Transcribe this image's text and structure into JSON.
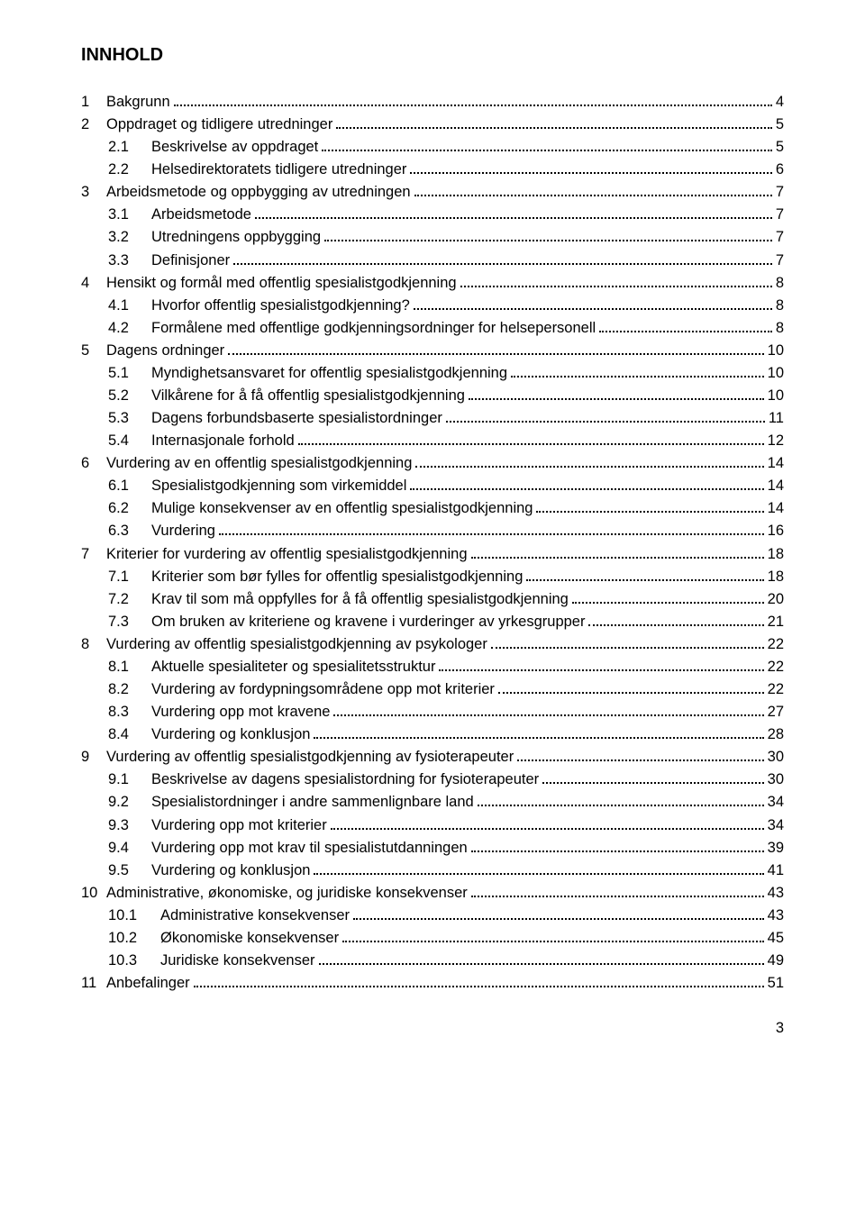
{
  "title": "INNHOLD",
  "footer_page": "3",
  "entries": [
    {
      "indent": 0,
      "num": "1",
      "text": "Bakgrunn",
      "page": "4"
    },
    {
      "indent": 0,
      "num": "2",
      "text": "Oppdraget og tidligere utredninger",
      "page": "5"
    },
    {
      "indent": 1,
      "num": "2.1",
      "text": "Beskrivelse av oppdraget",
      "page": "5"
    },
    {
      "indent": 1,
      "num": "2.2",
      "text": "Helsedirektoratets tidligere utredninger",
      "page": "6"
    },
    {
      "indent": 0,
      "num": "3",
      "text": "Arbeidsmetode og oppbygging av utredningen",
      "page": "7"
    },
    {
      "indent": 1,
      "num": "3.1",
      "text": "Arbeidsmetode",
      "page": "7"
    },
    {
      "indent": 1,
      "num": "3.2",
      "text": "Utredningens oppbygging",
      "page": "7"
    },
    {
      "indent": 1,
      "num": "3.3",
      "text": "Definisjoner",
      "page": "7"
    },
    {
      "indent": 0,
      "num": "4",
      "text": "Hensikt og formål med offentlig spesialistgodkjenning",
      "page": "8"
    },
    {
      "indent": 1,
      "num": "4.1",
      "text": "Hvorfor offentlig spesialistgodkjenning?",
      "page": "8"
    },
    {
      "indent": 1,
      "num": "4.2",
      "text": "Formålene med offentlige godkjenningsordninger for helsepersonell",
      "page": "8"
    },
    {
      "indent": 0,
      "num": "5",
      "text": "Dagens ordninger",
      "page": "10"
    },
    {
      "indent": 1,
      "num": "5.1",
      "text": "Myndighetsansvaret for offentlig spesialistgodkjenning",
      "page": "10"
    },
    {
      "indent": 1,
      "num": "5.2",
      "text": "Vilkårene for å få offentlig spesialistgodkjenning",
      "page": "10"
    },
    {
      "indent": 1,
      "num": "5.3",
      "text": "Dagens forbundsbaserte spesialistordninger",
      "page": "11"
    },
    {
      "indent": 1,
      "num": "5.4",
      "text": "Internasjonale forhold",
      "page": "12"
    },
    {
      "indent": 0,
      "num": "6",
      "text": "Vurdering av en offentlig spesialistgodkjenning",
      "page": "14"
    },
    {
      "indent": 1,
      "num": "6.1",
      "text": "Spesialistgodkjenning som virkemiddel",
      "page": "14"
    },
    {
      "indent": 1,
      "num": "6.2",
      "text": "Mulige konsekvenser av en offentlig spesialistgodkjenning",
      "page": "14"
    },
    {
      "indent": 1,
      "num": "6.3",
      "text": "Vurdering",
      "page": "16"
    },
    {
      "indent": 0,
      "num": "7",
      "text": "Kriterier for vurdering av offentlig spesialistgodkjenning",
      "page": "18"
    },
    {
      "indent": 1,
      "num": "7.1",
      "text": "Kriterier som bør fylles for offentlig spesialistgodkjenning",
      "page": "18"
    },
    {
      "indent": 1,
      "num": "7.2",
      "text": "Krav til som må oppfylles for å få offentlig spesialistgodkjenning",
      "page": "20"
    },
    {
      "indent": 1,
      "num": "7.3",
      "text": "Om bruken av kriteriene og kravene i vurderinger av yrkesgrupper",
      "page": "21"
    },
    {
      "indent": 0,
      "num": "8",
      "text": "Vurdering av offentlig spesialistgodkjenning av psykologer",
      "page": "22"
    },
    {
      "indent": 1,
      "num": "8.1",
      "text": "Aktuelle spesialiteter og spesialitetsstruktur",
      "page": "22"
    },
    {
      "indent": 1,
      "num": "8.2",
      "text": "Vurdering av fordypningsområdene opp mot kriterier",
      "page": "22"
    },
    {
      "indent": 1,
      "num": "8.3",
      "text": "Vurdering opp mot kravene",
      "page": "27"
    },
    {
      "indent": 1,
      "num": "8.4",
      "text": "Vurdering og konklusjon",
      "page": "28"
    },
    {
      "indent": 0,
      "num": "9",
      "text": "Vurdering av offentlig spesialistgodkjenning av fysioterapeuter",
      "page": "30"
    },
    {
      "indent": 1,
      "num": "9.1",
      "text": "Beskrivelse av dagens spesialistordning for fysioterapeuter",
      "page": "30"
    },
    {
      "indent": 1,
      "num": "9.2",
      "text": "Spesialistordninger i andre sammenlignbare land",
      "page": "34"
    },
    {
      "indent": 1,
      "num": "9.3",
      "text": "Vurdering opp mot kriterier",
      "page": "34"
    },
    {
      "indent": 1,
      "num": "9.4",
      "text": "Vurdering opp mot krav til spesialistutdanningen",
      "page": "39"
    },
    {
      "indent": 1,
      "num": "9.5",
      "text": "Vurdering og konklusjon",
      "page": "41"
    },
    {
      "indent": 0,
      "num": "10",
      "text": "Administrative, økonomiske, og juridiske konsekvenser",
      "page": "43"
    },
    {
      "indent": 2,
      "num": "10.1",
      "text": "Administrative konsekvenser",
      "page": "43"
    },
    {
      "indent": 2,
      "num": "10.2",
      "text": "Økonomiske konsekvenser",
      "page": "45"
    },
    {
      "indent": 2,
      "num": "10.3",
      "text": "Juridiske konsekvenser",
      "page": "49"
    },
    {
      "indent": 0,
      "num": "11",
      "text": "Anbefalinger",
      "page": "51"
    }
  ]
}
